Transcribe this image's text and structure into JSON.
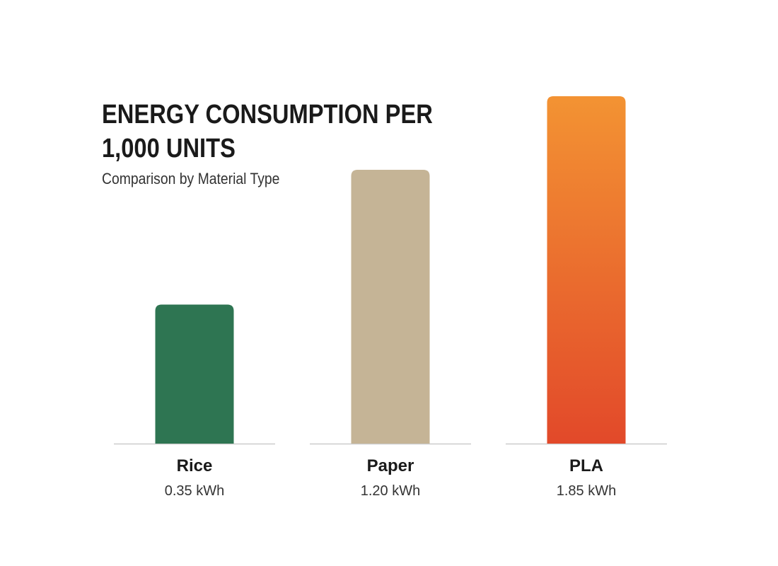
{
  "chart_data": {
    "type": "bar",
    "title": "ENERGY CONSUMPTION PER 1,000 UNITS",
    "subtitle": "Comparison by Material Type",
    "xlabel": "",
    "ylabel": "",
    "categories": [
      "Rice",
      "Paper",
      "PLA"
    ],
    "values": [
      0.35,
      1.2,
      1.85
    ],
    "value_labels": [
      "0.35 kWh",
      "1.20 kWh",
      "1.85 kWh"
    ],
    "unit": "kWh",
    "grid": false,
    "legend": "none",
    "colors": {
      "Rice": "#2e7552",
      "Paper": "#c5b496",
      "PLA_top": "#f39333",
      "PLA_bottom": "#e2492a",
      "baseline": "#cccccc"
    }
  }
}
